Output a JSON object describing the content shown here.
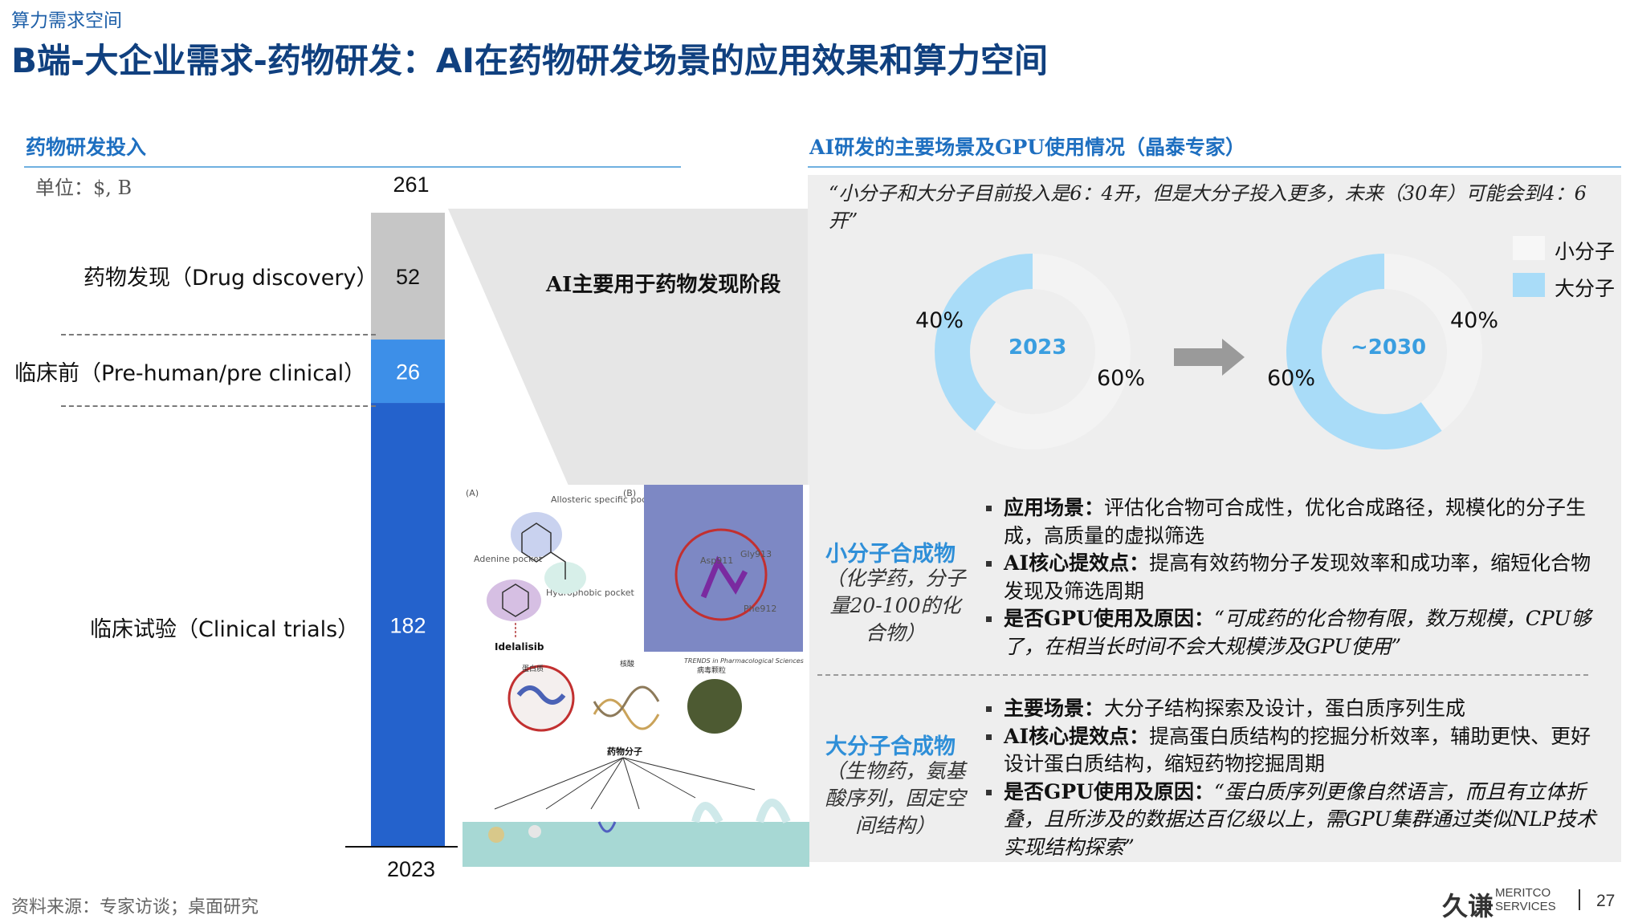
{
  "header": {
    "section_tag": "算力需求空间",
    "title": "B端-大企业需求-药物研发：AI在药物研发场景的应用效果和算力空间"
  },
  "left": {
    "heading": "药物研发投入",
    "unit": "单位：$, B"
  },
  "right": {
    "heading": "AI研发的主要场景及GPU使用情况（晶泰专家）",
    "quote": "“小分子和大分子目前投入是6：4开，但是大分子投入更多，未来（30年）可能会到4：6开”",
    "ai_stage_label": "AI主要用于药物发现阶段",
    "legend": [
      {
        "label": "小分子",
        "color": "#f3f3f3"
      },
      {
        "label": "大分子",
        "color": "#a9dcf8"
      }
    ],
    "small_molecule": {
      "title": "小分子合成物",
      "subtitle": "（化学药，分子量20-100的化合物）",
      "b1_key": "应用场景：",
      "b1_text": "评估化合物可合成性，优化合成路径，规模化的分子生成，高质量的虚拟筛选",
      "b2_key": "AI核心提效点：",
      "b2_text": "提高有效药物分子发现效率和成功率，缩短化合物发现及筛选周期",
      "b3_key": "是否GPU使用及原因：",
      "b3_text": "“可成药的化合物有限，数万规模，CPU够了，在相当长时间不会大规模涉及GPU使用”"
    },
    "large_molecule": {
      "title": "大分子合成物",
      "subtitle": "（生物药，氨基酸序列，固定空间结构）",
      "b1_key": "主要场景：",
      "b1_text": "大分子结构探索及设计，蛋白质序列生成",
      "b2_key": "AI核心提效点：",
      "b2_text": "提高蛋白质结构的挖掘分析效率，辅助更快、更好设计蛋白质结构，缩短药物挖掘周期",
      "b3_key": "是否GPU使用及原因：",
      "b3_text": "“蛋白质序列更像自然语言，而且有立体折叠，且所涉及的数据达百亿级以上，需GPU集群通过类似NLP技术实现结构探索”"
    }
  },
  "illustration": {
    "panel_a": "(A)",
    "panel_b": "(B)",
    "allosteric": "Allosteric specific pocket",
    "adenine": "Adenine pocket",
    "hydrophobic": "Hydrophobic pocket",
    "drug": "Idelalisib",
    "asp": "Asp911",
    "gly": "Gly913",
    "phe": "Phe912",
    "journal": "TRENDS in Pharmacological Sciences",
    "protein": "蛋白质",
    "nucleic": "核酸",
    "virus": "病毒颗粒",
    "drug_molecule": "药物分子"
  },
  "footer": {
    "source": "资料来源：专家访谈；桌面研究",
    "logo_cn": "久谦",
    "logo_en_1": "MERITCO",
    "logo_en_2": "SERVICES",
    "page": "27"
  },
  "chart_data": [
    {
      "type": "bar",
      "stacked": true,
      "categories": [
        "2023"
      ],
      "total": 261,
      "series": [
        {
          "name": "临床试验（Clinical trials）",
          "values": [
            182
          ],
          "color": "#2462cc"
        },
        {
          "name": "临床前（Pre-human/pre clinical）",
          "values": [
            26
          ],
          "color": "#3d8fe8"
        },
        {
          "name": "药物发现（Drug discovery）",
          "values": [
            52
          ],
          "color": "#c6c6c6"
        }
      ]
    },
    {
      "type": "pie",
      "donut": true,
      "center_label": "2023",
      "slices": [
        {
          "label": "小分子",
          "value": 60,
          "display": "60%",
          "color": "#f3f3f3"
        },
        {
          "label": "大分子",
          "value": 40,
          "display": "40%",
          "color": "#a9dcf8"
        }
      ]
    },
    {
      "type": "pie",
      "donut": true,
      "center_label": "~2030",
      "slices": [
        {
          "label": "小分子",
          "value": 40,
          "display": "40%",
          "color": "#f3f3f3"
        },
        {
          "label": "大分子",
          "value": 60,
          "display": "60%",
          "color": "#a9dcf8"
        }
      ]
    }
  ]
}
